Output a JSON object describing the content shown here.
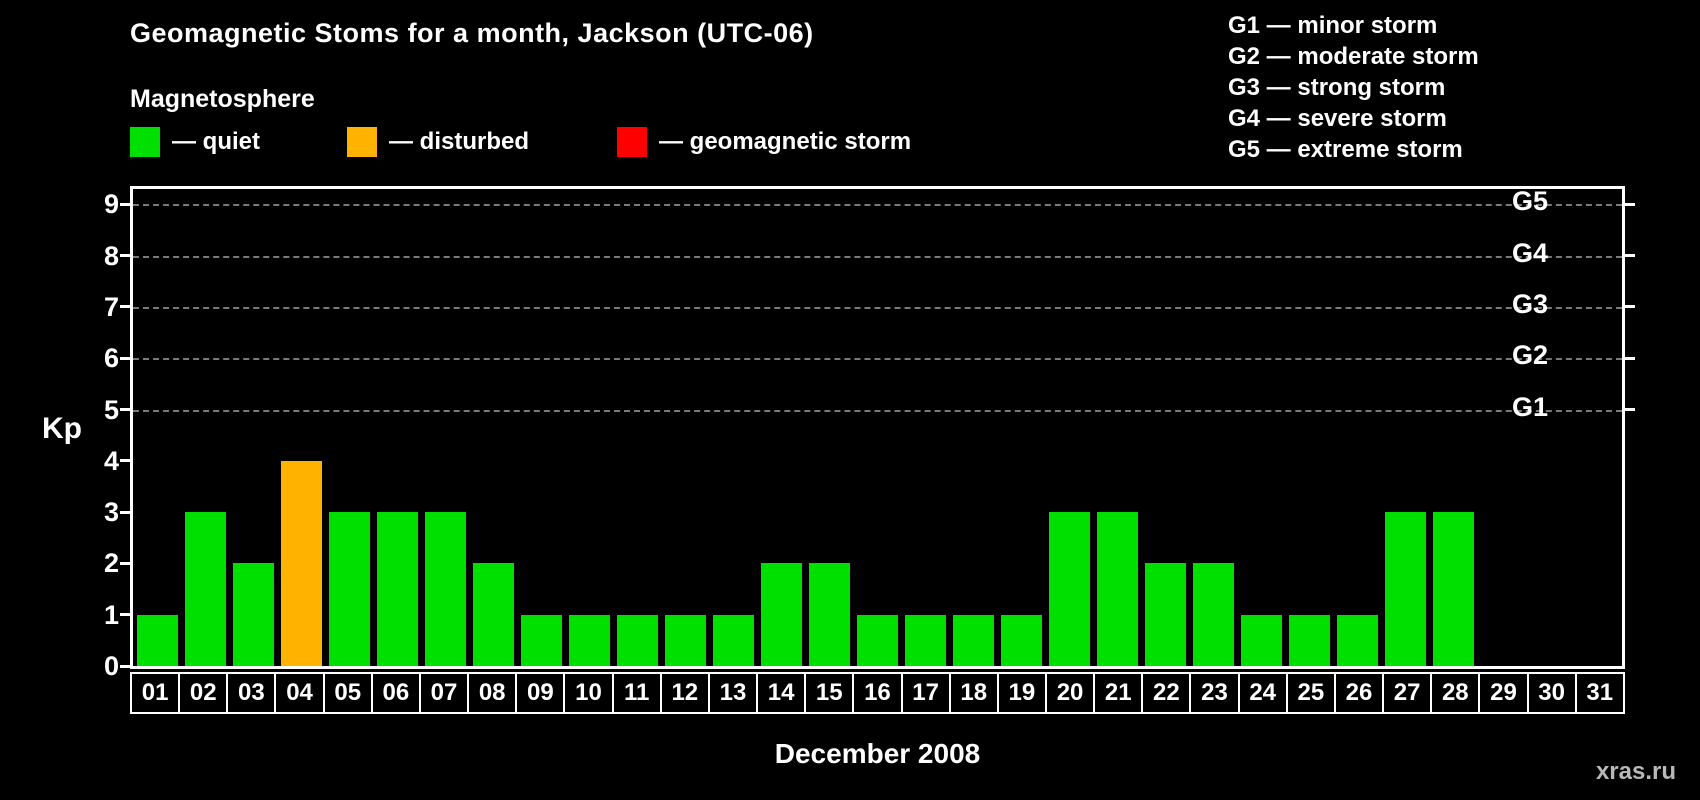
{
  "title": "Geomagnetic Stoms for a month, Jackson (UTC-06)",
  "legend": {
    "heading": "Magnetosphere",
    "items": [
      {
        "key": "quiet",
        "label": "— quiet",
        "color": "#00e000"
      },
      {
        "key": "disturbed",
        "label": "— disturbed",
        "color": "#ffb300"
      },
      {
        "key": "storm",
        "label": "— geomagnetic storm",
        "color": "#ff0000"
      }
    ]
  },
  "storm_scale": [
    {
      "label": "G1 — minor storm"
    },
    {
      "label": "G2 — moderate storm"
    },
    {
      "label": "G3 — strong storm"
    },
    {
      "label": "G4 — severe storm"
    },
    {
      "label": "G5 — extreme storm"
    }
  ],
  "chart_data": {
    "type": "bar",
    "title": "Geomagnetic Stoms for a month, Jackson (UTC-06)",
    "xlabel": "December 2008",
    "ylabel": "Kp",
    "ylim": [
      0,
      9.3
    ],
    "yticks": [
      0,
      1,
      2,
      3,
      4,
      5,
      6,
      7,
      8,
      9
    ],
    "gridlines_at": [
      5,
      6,
      7,
      8,
      9
    ],
    "right_axis_ticks": [
      {
        "label": "G1",
        "value": 5
      },
      {
        "label": "G2",
        "value": 6
      },
      {
        "label": "G3",
        "value": 7
      },
      {
        "label": "G4",
        "value": 8
      },
      {
        "label": "G5",
        "value": 9
      }
    ],
    "categories": [
      "01",
      "02",
      "03",
      "04",
      "05",
      "06",
      "07",
      "08",
      "09",
      "10",
      "11",
      "12",
      "13",
      "14",
      "15",
      "16",
      "17",
      "18",
      "19",
      "20",
      "21",
      "22",
      "23",
      "24",
      "25",
      "26",
      "27",
      "28",
      "29",
      "30",
      "31"
    ],
    "values": [
      1,
      3,
      2,
      4,
      3,
      3,
      3,
      2,
      1,
      1,
      1,
      1,
      1,
      2,
      2,
      1,
      1,
      1,
      1,
      3,
      3,
      2,
      2,
      1,
      1,
      1,
      3,
      3,
      0,
      0,
      0
    ],
    "bar_states": [
      "quiet",
      "quiet",
      "quiet",
      "disturbed",
      "quiet",
      "quiet",
      "quiet",
      "quiet",
      "quiet",
      "quiet",
      "quiet",
      "quiet",
      "quiet",
      "quiet",
      "quiet",
      "quiet",
      "quiet",
      "quiet",
      "quiet",
      "quiet",
      "quiet",
      "quiet",
      "quiet",
      "quiet",
      "quiet",
      "quiet",
      "quiet",
      "quiet",
      "quiet",
      "quiet",
      "quiet"
    ],
    "color_map": {
      "quiet": "#00e000",
      "disturbed": "#ffb300",
      "storm": "#ff0000"
    },
    "legend_position": "top",
    "grid": true
  },
  "watermark": "xras.ru"
}
